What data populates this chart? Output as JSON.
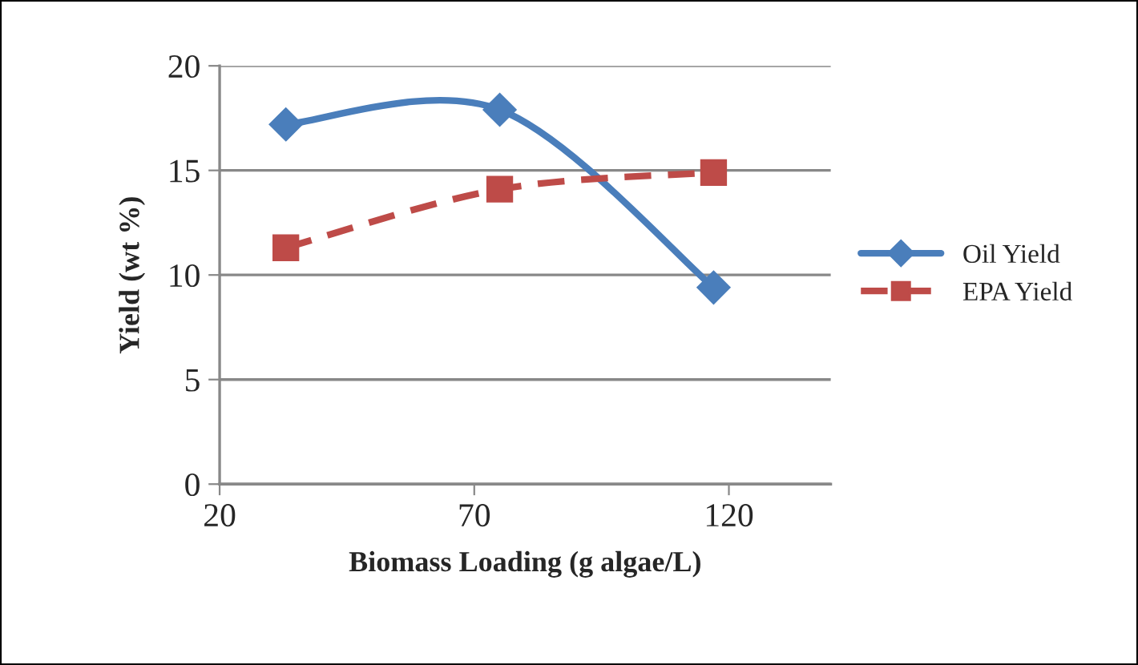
{
  "chart_data": {
    "type": "line",
    "xlabel": "Biomass Loading (g algae/L)",
    "ylabel": "Yield (wt %)",
    "x": [
      33,
      75,
      117
    ],
    "series": [
      {
        "name": "Oil Yield",
        "color": "#4a7ebb",
        "values": [
          17.2,
          17.9,
          9.4
        ],
        "marker": "diamond",
        "line_style": "solid"
      },
      {
        "name": "EPA Yield",
        "color": "#be4b48",
        "values": [
          11.3,
          14.1,
          14.9
        ],
        "marker": "square",
        "line_style": "dashed"
      }
    ],
    "xlim": [
      20,
      140
    ],
    "xticks": [
      20,
      70,
      120
    ],
    "ylim": [
      0,
      20
    ],
    "yticks": [
      0,
      5,
      10,
      15,
      20
    ],
    "grid": "y",
    "legend": "right"
  }
}
